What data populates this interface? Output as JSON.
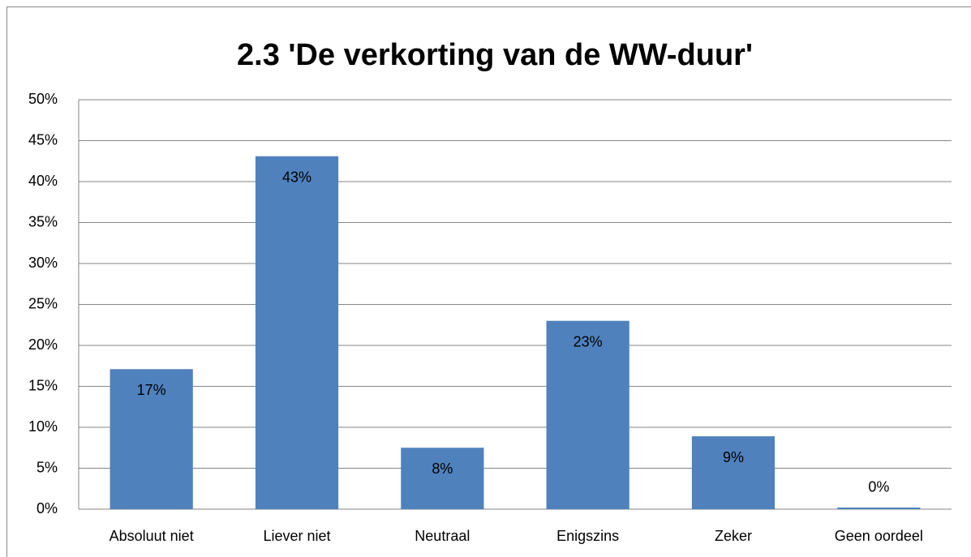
{
  "chart_data": {
    "type": "bar",
    "title": "2.3 'De verkorting van de WW-duur'",
    "categories": [
      "Absoluut niet",
      "Liever niet",
      "Neutraal",
      "Enigszins",
      "Zeker",
      "Geen oordeel"
    ],
    "values": [
      17.1,
      43.1,
      7.5,
      23.0,
      8.9,
      0.2
    ],
    "value_labels": [
      "17%",
      "43%",
      "8%",
      "23%",
      "9%",
      "0%"
    ],
    "color": "#4f81bd",
    "ylim": [
      0,
      50
    ],
    "yticks": [
      {
        "value": 0,
        "label": "0%"
      },
      {
        "value": 5,
        "label": "5%"
      },
      {
        "value": 10,
        "label": "10%"
      },
      {
        "value": 15,
        "label": "15%"
      },
      {
        "value": 20,
        "label": "20%"
      },
      {
        "value": 25,
        "label": "25%"
      },
      {
        "value": 30,
        "label": "30%"
      },
      {
        "value": 35,
        "label": "35%"
      },
      {
        "value": 40,
        "label": "40%"
      },
      {
        "value": 45,
        "label": "45%"
      },
      {
        "value": 50,
        "label": "50%"
      }
    ],
    "grid": true
  }
}
